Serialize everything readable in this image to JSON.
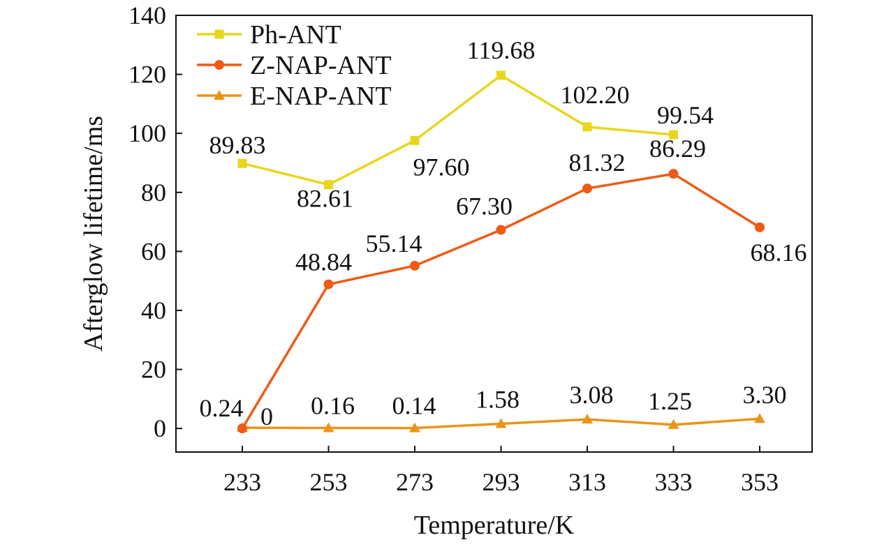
{
  "chart_data": {
    "type": "line",
    "xlabel": "Temperature/K",
    "ylabel": "Afterglow lifetime/ms",
    "categories": [
      "233",
      "253",
      "273",
      "293",
      "313",
      "333",
      "353"
    ],
    "ylim": [
      -8,
      140
    ],
    "yticks": [
      0,
      20,
      40,
      60,
      80,
      100,
      120,
      140
    ],
    "grid": false,
    "legend_position": "top-left",
    "series": [
      {
        "name": "Ph-ANT",
        "color": "#e8d61c",
        "marker": "square",
        "values": [
          89.83,
          82.61,
          97.6,
          119.68,
          102.2,
          99.54,
          null
        ],
        "labels": [
          "89.83",
          "82.61",
          "97.60",
          "119.68",
          "102.20",
          "99.54",
          null
        ]
      },
      {
        "name": "Z-NAP-ANT",
        "color": "#f05a14",
        "marker": "circle",
        "values": [
          0,
          48.84,
          55.14,
          67.3,
          81.32,
          86.29,
          68.16
        ],
        "labels": [
          "0",
          "48.84",
          "55.14",
          "67.30",
          "81.32",
          "86.29",
          "68.16"
        ]
      },
      {
        "name": "E-NAP-ANT",
        "color": "#eb9418",
        "marker": "triangle",
        "values": [
          0.24,
          0.16,
          0.14,
          1.58,
          3.08,
          1.25,
          3.3
        ],
        "labels": [
          "0.24",
          "0.16",
          "0.14",
          "1.58",
          "3.08",
          "1.25",
          "3.30"
        ]
      }
    ]
  }
}
